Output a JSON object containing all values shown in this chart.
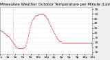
{
  "title": "Milwaukee Weather Outdoor Temperature per Minute (Last 24 Hours)",
  "background_color": "#f0f0f0",
  "plot_bg_color": "#ffffff",
  "line_color": "#cc0000",
  "grid_color": "#cccccc",
  "yticks": [
    10,
    15,
    20,
    25,
    30,
    35,
    40,
    45,
    50,
    55
  ],
  "ylim": [
    8,
    57
  ],
  "xlim": [
    0,
    1440
  ],
  "temp_data": [
    33,
    33,
    32,
    32,
    31,
    31,
    30,
    30,
    29,
    29,
    28,
    28,
    27,
    27,
    26,
    25,
    24,
    23,
    22,
    21,
    20,
    19,
    18,
    17,
    16,
    15,
    15,
    15,
    14,
    14,
    14,
    14,
    14,
    14,
    14,
    14,
    14,
    15,
    15,
    16,
    17,
    19,
    21,
    24,
    27,
    30,
    33,
    36,
    39,
    41,
    43,
    44,
    45,
    46,
    47,
    48,
    48,
    49,
    49,
    49,
    50,
    50,
    50,
    50,
    50,
    50,
    50,
    50,
    49,
    49,
    48,
    47,
    46,
    45,
    44,
    43,
    41,
    40,
    38,
    37,
    35,
    34,
    33,
    31,
    30,
    29,
    27,
    26,
    25,
    24,
    23,
    22,
    22,
    21,
    21,
    21,
    20,
    20,
    20,
    20,
    20,
    20,
    20,
    20,
    20,
    20,
    20,
    20,
    20,
    20,
    20,
    20,
    20,
    20,
    20,
    20,
    20,
    20,
    20,
    20,
    20,
    20,
    20,
    20,
    20,
    20,
    20,
    20,
    20,
    20,
    20,
    20,
    20,
    20,
    20,
    20,
    20,
    20,
    20,
    20,
    20,
    20,
    20,
    13
  ],
  "vline_x": 200,
  "vline_color": "#999999",
  "title_fontsize": 4.0,
  "tick_fontsize": 3.2,
  "title_color": "#000000",
  "xtick_positions": [
    0,
    120,
    240,
    360,
    480,
    600,
    720,
    840,
    960,
    1080,
    1200,
    1320,
    1440
  ],
  "xtick_labels": [
    "12a",
    "2a",
    "4a",
    "6a",
    "8a",
    "10a",
    "12p",
    "2p",
    "4p",
    "6p",
    "8p",
    "10p",
    "12a"
  ]
}
